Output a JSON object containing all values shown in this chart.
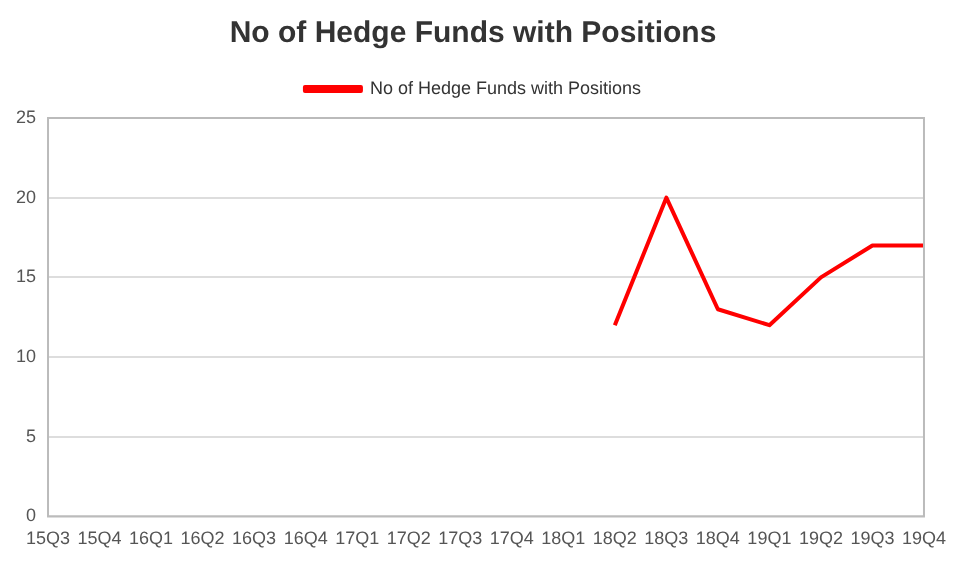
{
  "chart_data": {
    "type": "line",
    "title": "No of Hedge Funds with Positions",
    "categories": [
      "15Q3",
      "15Q4",
      "16Q1",
      "16Q2",
      "16Q3",
      "16Q4",
      "17Q1",
      "17Q2",
      "17Q3",
      "17Q4",
      "18Q1",
      "18Q2",
      "18Q3",
      "18Q4",
      "19Q1",
      "19Q2",
      "19Q3",
      "19Q4"
    ],
    "series": [
      {
        "name": "No of Hedge Funds with Positions",
        "color": "#ff0000",
        "values": [
          null,
          null,
          null,
          null,
          null,
          null,
          null,
          null,
          null,
          null,
          null,
          12,
          20,
          13,
          12,
          15,
          17,
          17
        ]
      }
    ],
    "ylim": [
      0,
      25
    ],
    "yticks": [
      0,
      5,
      10,
      15,
      20,
      25
    ],
    "grid": "y",
    "legend": "top",
    "marker": "none"
  }
}
